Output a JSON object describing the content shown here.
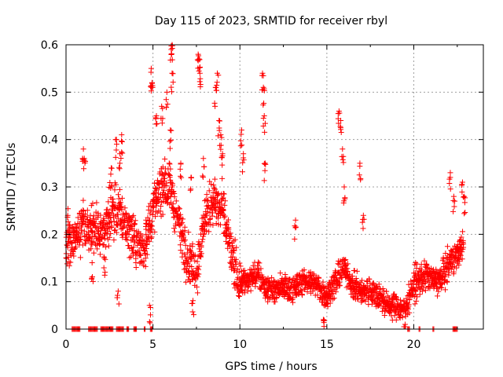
{
  "chart_data": {
    "type": "scatter",
    "title": "Day 115 of 2023, SRMTID for receiver rbyl",
    "xlabel": "GPS time / hours",
    "ylabel": "SRMTID / TECUs",
    "xlim": [
      0,
      24
    ],
    "ylim": [
      0,
      0.6
    ],
    "xticks": [
      "0",
      "5",
      "10",
      "15",
      "20"
    ],
    "yticks": [
      "0",
      "0.1",
      "0.2",
      "0.3",
      "0.4",
      "0.5",
      "0.6"
    ],
    "grid": true,
    "marker": "+",
    "color": "#ff0000",
    "series": [
      {
        "name": "SRMTID",
        "trend": [
          [
            0.0,
            0.18
          ],
          [
            0.5,
            0.19
          ],
          [
            1.0,
            0.22
          ],
          [
            1.5,
            0.21
          ],
          [
            2.0,
            0.2
          ],
          [
            2.5,
            0.24
          ],
          [
            3.0,
            0.25
          ],
          [
            3.5,
            0.22
          ],
          [
            4.0,
            0.18
          ],
          [
            4.5,
            0.17
          ],
          [
            5.0,
            0.25
          ],
          [
            5.5,
            0.3
          ],
          [
            6.0,
            0.3
          ],
          [
            6.5,
            0.22
          ],
          [
            7.0,
            0.15
          ],
          [
            7.5,
            0.12
          ],
          [
            8.0,
            0.24
          ],
          [
            8.5,
            0.27
          ],
          [
            9.0,
            0.25
          ],
          [
            9.5,
            0.16
          ],
          [
            10.0,
            0.1
          ],
          [
            10.5,
            0.1
          ],
          [
            11.0,
            0.12
          ],
          [
            11.5,
            0.09
          ],
          [
            12.0,
            0.08
          ],
          [
            12.5,
            0.09
          ],
          [
            13.0,
            0.08
          ],
          [
            13.5,
            0.1
          ],
          [
            14.0,
            0.1
          ],
          [
            14.5,
            0.09
          ],
          [
            15.0,
            0.07
          ],
          [
            15.5,
            0.1
          ],
          [
            16.0,
            0.13
          ],
          [
            16.5,
            0.09
          ],
          [
            17.0,
            0.08
          ],
          [
            17.5,
            0.08
          ],
          [
            18.0,
            0.07
          ],
          [
            18.5,
            0.05
          ],
          [
            19.0,
            0.05
          ],
          [
            19.5,
            0.04
          ],
          [
            20.0,
            0.09
          ],
          [
            20.5,
            0.11
          ],
          [
            21.0,
            0.11
          ],
          [
            21.5,
            0.1
          ],
          [
            22.0,
            0.14
          ],
          [
            22.5,
            0.16
          ],
          [
            22.8,
            0.18
          ]
        ],
        "spikes": [
          [
            0.1,
            0.24
          ],
          [
            0.2,
            0.22
          ],
          [
            1.0,
            0.38
          ],
          [
            1.05,
            0.36
          ],
          [
            1.4,
            0.24
          ],
          [
            2.6,
            0.34
          ],
          [
            2.9,
            0.4
          ],
          [
            3.2,
            0.41
          ],
          [
            3.1,
            0.37
          ],
          [
            4.6,
            0.23
          ],
          [
            4.9,
            0.55
          ],
          [
            4.95,
            0.52
          ],
          [
            5.2,
            0.45
          ],
          [
            5.5,
            0.47
          ],
          [
            5.8,
            0.5
          ],
          [
            6.0,
            0.42
          ],
          [
            6.05,
            0.59
          ],
          [
            6.1,
            0.6
          ],
          [
            6.1,
            0.54
          ],
          [
            6.6,
            0.35
          ],
          [
            7.2,
            0.32
          ],
          [
            7.6,
            0.58
          ],
          [
            7.65,
            0.57
          ],
          [
            7.7,
            0.54
          ],
          [
            7.9,
            0.36
          ],
          [
            8.6,
            0.51
          ],
          [
            8.7,
            0.54
          ],
          [
            8.8,
            0.44
          ],
          [
            8.9,
            0.41
          ],
          [
            9.0,
            0.37
          ],
          [
            10.1,
            0.42
          ],
          [
            10.2,
            0.37
          ],
          [
            11.3,
            0.54
          ],
          [
            11.35,
            0.51
          ],
          [
            11.4,
            0.45
          ],
          [
            11.45,
            0.35
          ],
          [
            13.2,
            0.23
          ],
          [
            15.7,
            0.46
          ],
          [
            15.8,
            0.44
          ],
          [
            15.9,
            0.38
          ],
          [
            16.0,
            0.3
          ],
          [
            16.9,
            0.35
          ],
          [
            17.1,
            0.24
          ],
          [
            20.1,
            0.14
          ],
          [
            22.1,
            0.33
          ],
          [
            22.3,
            0.28
          ],
          [
            22.8,
            0.31
          ],
          [
            22.9,
            0.28
          ],
          [
            19.5,
            0.01
          ],
          [
            14.8,
            0.02
          ],
          [
            4.8,
            0.05
          ],
          [
            3.0,
            0.08
          ],
          [
            7.3,
            0.06
          ],
          [
            2.2,
            0.15
          ],
          [
            1.5,
            0.14
          ]
        ],
        "zero_intervals": [
          [
            0.35,
            0.85
          ],
          [
            1.3,
            1.85
          ],
          [
            2.0,
            2.7
          ],
          [
            2.9,
            3.3
          ],
          [
            3.5,
            3.6
          ],
          [
            3.9,
            4.05
          ],
          [
            4.5,
            4.55
          ],
          [
            4.85,
            4.95
          ],
          [
            19.65,
            19.75
          ],
          [
            20.3,
            20.4
          ],
          [
            21.1,
            21.2
          ],
          [
            22.25,
            22.55
          ]
        ]
      }
    ]
  }
}
